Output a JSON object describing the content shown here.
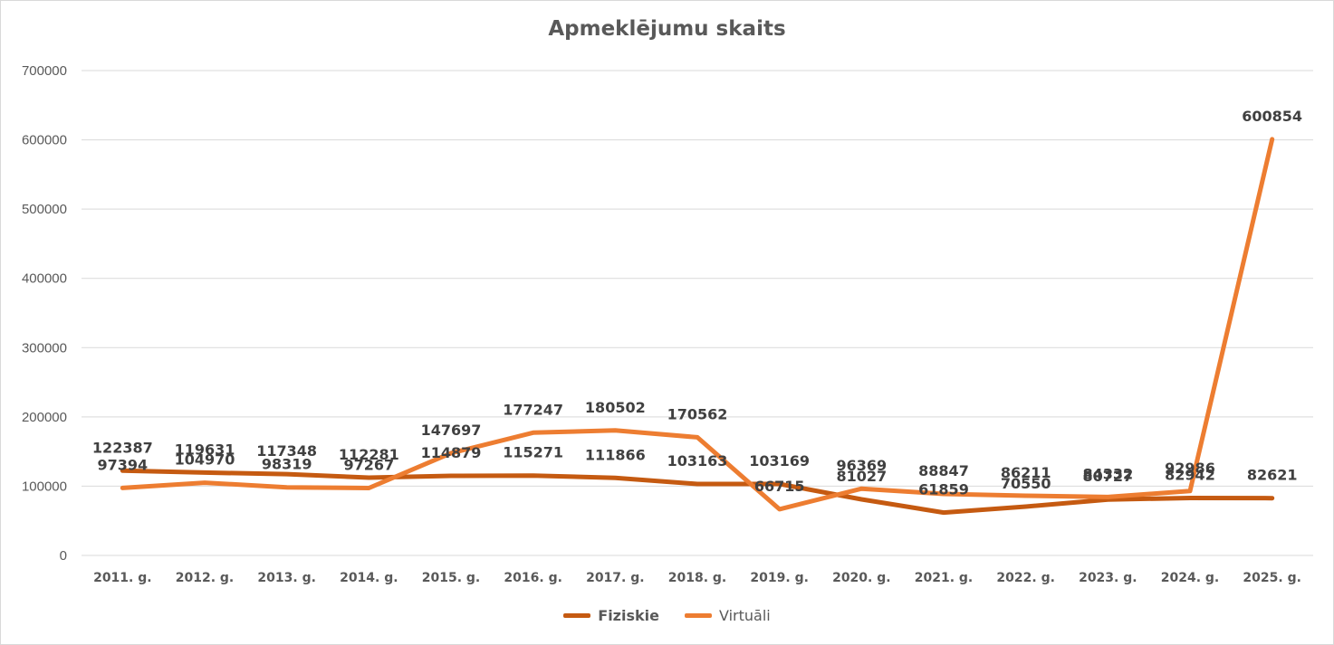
{
  "chart_data": {
    "type": "line",
    "title": "Apmeklējumu skaits",
    "categories": [
      "2011. g.",
      "2012. g.",
      "2013. g.",
      "2014. g.",
      "2015. g.",
      "2016. g.",
      "2017. g.",
      "2018. g.",
      "2019. g.",
      "2020. g.",
      "2021. g.",
      "2022. g.",
      "2023. g.",
      "2024. g.",
      "2025. g."
    ],
    "series": [
      {
        "name": "Fiziskie",
        "color": "#c55a11",
        "values": [
          122387,
          119631,
          117348,
          112281,
          114879,
          115271,
          111866,
          103163,
          103169,
          81027,
          61859,
          70550,
          80727,
          82942,
          82621
        ],
        "labels": [
          "122387",
          "119631",
          "117348",
          "112281",
          "114879",
          "115271",
          "111866",
          "103163",
          "103169",
          "81027",
          "61859",
          "70550",
          "80727",
          "82942",
          "82621"
        ]
      },
      {
        "name": "Virtuāli",
        "color": "#ed7d31",
        "values": [
          97394,
          104970,
          98319,
          97267,
          147697,
          177247,
          180502,
          170562,
          66715,
          96369,
          88847,
          86211,
          84332,
          92986,
          600854
        ],
        "labels": [
          "97394",
          "104970",
          "98319",
          "97267",
          "147697",
          "177247",
          "180502",
          "170562",
          "66715",
          "96369",
          "88847",
          "86211",
          "84332",
          "92986",
          "600854"
        ]
      }
    ],
    "ylim": [
      0,
      700000
    ],
    "yticks": [
      "0",
      "100000",
      "200000",
      "300000",
      "400000",
      "500000",
      "600000",
      "700000"
    ],
    "grid": true,
    "legend_position": "bottom"
  }
}
